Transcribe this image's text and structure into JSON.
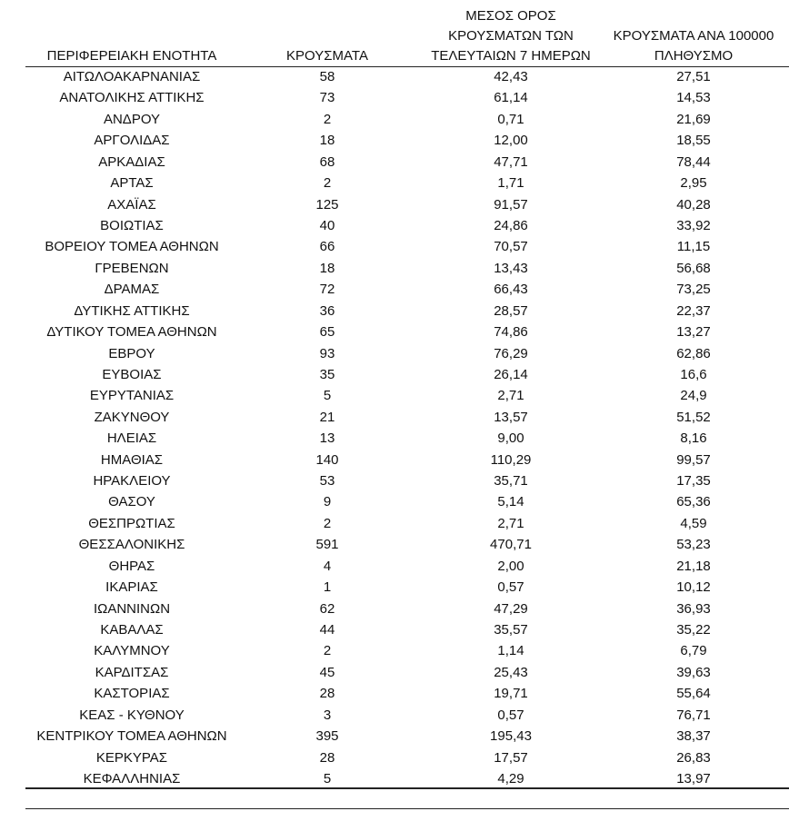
{
  "table": {
    "header": [
      [
        "ΠΕΡΙΦΕΡΕΙΑΚΗ ΕΝΟΤΗΤΑ"
      ],
      [
        "ΚΡΟΥΣΜΑΤΑ"
      ],
      [
        "ΜΕΣΟΣ ΟΡΟΣ",
        "ΚΡΟΥΣΜΑΤΩΝ ΤΩΝ",
        "ΤΕΛΕΥΤΑΙΩΝ 7 ΗΜΕΡΩΝ"
      ],
      [
        "ΚΡΟΥΣΜΑΤΑ ΑΝΑ 100000",
        "ΠΛΗΘΥΣΜΟ"
      ]
    ],
    "rows": [
      [
        "ΑΙΤΩΛΟΑΚΑΡΝΑΝΙΑΣ",
        "58",
        "42,43",
        "27,51"
      ],
      [
        "ΑΝΑΤΟΛΙΚΗΣ ΑΤΤΙΚΗΣ",
        "73",
        "61,14",
        "14,53"
      ],
      [
        "ΑΝΔΡΟΥ",
        "2",
        "0,71",
        "21,69"
      ],
      [
        "ΑΡΓΟΛΙΔΑΣ",
        "18",
        "12,00",
        "18,55"
      ],
      [
        "ΑΡΚΑΔΙΑΣ",
        "68",
        "47,71",
        "78,44"
      ],
      [
        "ΑΡΤΑΣ",
        "2",
        "1,71",
        "2,95"
      ],
      [
        "ΑΧΑΪΑΣ",
        "125",
        "91,57",
        "40,28"
      ],
      [
        "ΒΟΙΩΤΙΑΣ",
        "40",
        "24,86",
        "33,92"
      ],
      [
        "ΒΟΡΕΙΟΥ ΤΟΜΕΑ ΑΘΗΝΩΝ",
        "66",
        "70,57",
        "11,15"
      ],
      [
        "ΓΡΕΒΕΝΩΝ",
        "18",
        "13,43",
        "56,68"
      ],
      [
        "ΔΡΑΜΑΣ",
        "72",
        "66,43",
        "73,25"
      ],
      [
        "ΔΥΤΙΚΗΣ ΑΤΤΙΚΗΣ",
        "36",
        "28,57",
        "22,37"
      ],
      [
        "ΔΥΤΙΚΟΥ ΤΟΜΕΑ ΑΘΗΝΩΝ",
        "65",
        "74,86",
        "13,27"
      ],
      [
        "ΕΒΡΟΥ",
        "93",
        "76,29",
        "62,86"
      ],
      [
        "ΕΥΒΟΙΑΣ",
        "35",
        "26,14",
        "16,6"
      ],
      [
        "ΕΥΡΥΤΑΝΙΑΣ",
        "5",
        "2,71",
        "24,9"
      ],
      [
        "ΖΑΚΥΝΘΟΥ",
        "21",
        "13,57",
        "51,52"
      ],
      [
        "ΗΛΕΙΑΣ",
        "13",
        "9,00",
        "8,16"
      ],
      [
        "ΗΜΑΘΙΑΣ",
        "140",
        "110,29",
        "99,57"
      ],
      [
        "ΗΡΑΚΛΕΙΟΥ",
        "53",
        "35,71",
        "17,35"
      ],
      [
        "ΘΑΣΟΥ",
        "9",
        "5,14",
        "65,36"
      ],
      [
        "ΘΕΣΠΡΩΤΙΑΣ",
        "2",
        "2,71",
        "4,59"
      ],
      [
        "ΘΕΣΣΑΛΟΝΙΚΗΣ",
        "591",
        "470,71",
        "53,23"
      ],
      [
        "ΘΗΡΑΣ",
        "4",
        "2,00",
        "21,18"
      ],
      [
        "ΙΚΑΡΙΑΣ",
        "1",
        "0,57",
        "10,12"
      ],
      [
        "ΙΩΑΝΝΙΝΩΝ",
        "62",
        "47,29",
        "36,93"
      ],
      [
        "ΚΑΒΑΛΑΣ",
        "44",
        "35,57",
        "35,22"
      ],
      [
        "ΚΑΛΥΜΝΟΥ",
        "2",
        "1,14",
        "6,79"
      ],
      [
        "ΚΑΡΔΙΤΣΑΣ",
        "45",
        "25,43",
        "39,63"
      ],
      [
        "ΚΑΣΤΟΡΙΑΣ",
        "28",
        "19,71",
        "55,64"
      ],
      [
        "ΚΕΑΣ - ΚΥΘΝΟΥ",
        "3",
        "0,57",
        "76,71"
      ],
      [
        "ΚΕΝΤΡΙΚΟΥ ΤΟΜΕΑ ΑΘΗΝΩΝ",
        "395",
        "195,43",
        "38,37"
      ],
      [
        "ΚΕΡΚΥΡΑΣ",
        "28",
        "17,57",
        "26,83"
      ],
      [
        "ΚΕΦΑΛΛΗΝΙΑΣ",
        "5",
        "4,29",
        "13,97"
      ]
    ]
  }
}
